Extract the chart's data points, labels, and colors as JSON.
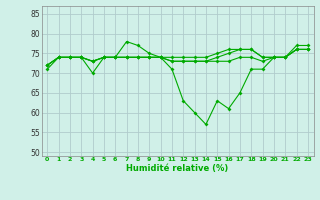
{
  "x": [
    0,
    1,
    2,
    3,
    4,
    5,
    6,
    7,
    8,
    9,
    10,
    11,
    12,
    13,
    14,
    15,
    16,
    17,
    18,
    19,
    20,
    21,
    22,
    23
  ],
  "line1": [
    71,
    74,
    74,
    74,
    70,
    74,
    74,
    78,
    77,
    75,
    74,
    71,
    63,
    60,
    57,
    63,
    61,
    65,
    71,
    71,
    74,
    74,
    77,
    77
  ],
  "line2": [
    72,
    74,
    74,
    74,
    73,
    74,
    74,
    74,
    74,
    74,
    74,
    73,
    73,
    73,
    73,
    73,
    73,
    74,
    74,
    73,
    74,
    74,
    76,
    76
  ],
  "line3": [
    72,
    74,
    74,
    74,
    73,
    74,
    74,
    74,
    74,
    74,
    74,
    73,
    73,
    73,
    73,
    74,
    75,
    76,
    76,
    74,
    74,
    74,
    76,
    76
  ],
  "line4": [
    72,
    74,
    74,
    74,
    73,
    74,
    74,
    74,
    74,
    74,
    74,
    74,
    74,
    74,
    74,
    75,
    76,
    76,
    76,
    74,
    74,
    74,
    76,
    76
  ],
  "line_color": "#00aa00",
  "bg_color": "#d0f0e8",
  "grid_color": "#b0cccc",
  "xlabel": "Humidité relative (%)",
  "ylim": [
    49,
    87
  ],
  "yticks": [
    50,
    55,
    60,
    65,
    70,
    75,
    80,
    85
  ],
  "xlim": [
    -0.5,
    23.5
  ]
}
